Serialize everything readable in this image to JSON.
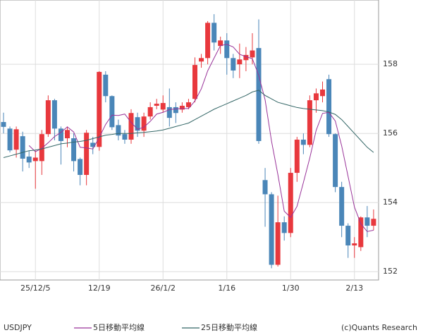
{
  "chart_data": {
    "type": "candlestick",
    "categories": [
      "2025-11-28",
      "2025-12-01",
      "2025-12-02",
      "2025-12-03",
      "2025-12-04",
      "2025-12-05",
      "2025-12-08",
      "2025-12-09",
      "2025-12-10",
      "2025-12-11",
      "2025-12-12",
      "2025-12-15",
      "2025-12-16",
      "2025-12-17",
      "2025-12-18",
      "2025-12-19",
      "2025-12-22",
      "2025-12-23",
      "2025-12-24",
      "2025-12-25",
      "2025-12-26",
      "2025-12-29",
      "2025-12-30",
      "2025-12-31",
      "2026-01-01",
      "2026-01-02",
      "2026-01-05",
      "2026-01-06",
      "2026-01-07",
      "2026-01-08",
      "2026-01-09",
      "2026-01-12",
      "2026-01-13",
      "2026-01-14",
      "2026-01-15",
      "2026-01-16",
      "2026-01-19",
      "2026-01-20",
      "2026-01-21",
      "2026-01-22",
      "2026-01-23",
      "2026-01-26",
      "2026-01-27",
      "2026-01-28",
      "2026-01-29",
      "2026-01-30",
      "2026-02-02",
      "2026-02-03",
      "2026-02-04",
      "2026-02-05",
      "2026-02-06",
      "2026-02-09",
      "2026-02-10",
      "2026-02-11",
      "2026-02-12",
      "2026-02-13",
      "2026-02-16",
      "2026-02-17",
      "2026-02-18"
    ],
    "open": [
      156.33,
      156.14,
      155.53,
      155.92,
      155.33,
      155.2,
      155.2,
      155.98,
      156.96,
      156.14,
      155.86,
      155.86,
      155.26,
      154.8,
      155.73,
      155.61,
      157.7,
      157.08,
      156.24,
      155.98,
      155.82,
      156.47,
      156.08,
      156.49,
      156.8,
      156.69,
      156.76,
      156.76,
      156.69,
      156.76,
      157.0,
      158.08,
      158.18,
      159.2,
      158.53,
      158.69,
      158.18,
      158.0,
      158.12,
      158.2,
      158.47,
      154.65,
      154.24,
      152.2,
      153.43,
      153.12,
      154.86,
      155.82,
      155.67,
      156.96,
      157.08,
      157.57,
      155.98,
      154.45,
      153.33,
      152.76,
      152.71,
      153.57,
      153.33
    ],
    "high": [
      156.6,
      156.2,
      156.2,
      156.05,
      155.5,
      155.5,
      156.1,
      157.1,
      157.0,
      156.2,
      156.2,
      156.0,
      155.3,
      156.1,
      155.9,
      157.8,
      157.8,
      157.1,
      156.4,
      156.1,
      156.7,
      156.6,
      156.6,
      156.9,
      157.0,
      157.1,
      157.3,
      156.9,
      156.9,
      157.0,
      158.2,
      158.3,
      159.25,
      159.45,
      158.8,
      158.9,
      158.3,
      158.6,
      158.5,
      158.9,
      159.3,
      155.0,
      154.3,
      154.2,
      153.6,
      155.0,
      155.9,
      156.0,
      157.1,
      157.3,
      157.5,
      157.7,
      156.0,
      154.6,
      153.4,
      153.0,
      153.6,
      153.9,
      153.8
    ],
    "low": [
      156.0,
      155.45,
      155.3,
      154.9,
      155.0,
      154.4,
      154.8,
      155.9,
      155.8,
      155.1,
      155.6,
      154.9,
      154.5,
      154.5,
      155.4,
      155.5,
      156.9,
      156.1,
      155.8,
      155.7,
      155.7,
      155.9,
      155.9,
      156.4,
      156.7,
      156.6,
      156.2,
      156.3,
      156.6,
      156.7,
      156.9,
      157.9,
      158.0,
      158.4,
      158.3,
      157.7,
      157.6,
      157.6,
      157.8,
      158.0,
      155.7,
      153.3,
      152.1,
      152.15,
      152.9,
      153.0,
      154.6,
      155.4,
      155.6,
      156.6,
      156.9,
      155.9,
      154.3,
      153.0,
      152.4,
      152.4,
      152.6,
      153.0,
      153.2
    ],
    "close": [
      156.19,
      155.51,
      156.12,
      155.27,
      155.16,
      155.3,
      155.98,
      156.96,
      156.14,
      155.78,
      156.1,
      155.2,
      154.8,
      156.02,
      155.61,
      157.78,
      157.08,
      156.18,
      155.94,
      155.82,
      156.59,
      156.08,
      156.49,
      156.76,
      156.86,
      156.88,
      156.45,
      156.59,
      156.8,
      156.9,
      157.98,
      158.18,
      159.2,
      158.63,
      158.69,
      158.18,
      157.82,
      158.14,
      158.27,
      158.4,
      155.78,
      154.24,
      152.2,
      153.43,
      153.12,
      154.86,
      155.82,
      155.67,
      156.96,
      157.16,
      157.27,
      155.98,
      154.45,
      153.33,
      152.76,
      152.82,
      153.57,
      153.33,
      153.53
    ],
    "up_color": "#e8383d",
    "down_color": "#4a86b8",
    "series": [
      {
        "name": "5日移動平均線",
        "color": "#993399",
        "values": [
          null,
          null,
          null,
          null,
          155.65,
          155.47,
          155.57,
          155.73,
          155.91,
          156.03,
          156.19,
          156.04,
          155.6,
          155.58,
          155.55,
          155.88,
          156.26,
          156.53,
          156.52,
          156.56,
          156.32,
          156.12,
          156.18,
          156.35,
          156.56,
          156.61,
          156.69,
          156.71,
          156.72,
          156.72,
          156.94,
          157.29,
          157.81,
          158.18,
          158.54,
          158.58,
          158.5,
          158.29,
          158.22,
          158.16,
          157.68,
          156.97,
          155.78,
          154.81,
          153.75,
          153.57,
          153.89,
          154.58,
          155.29,
          156.09,
          156.58,
          156.61,
          156.36,
          155.64,
          154.76,
          153.87,
          153.39,
          153.16,
          153.2
        ]
      },
      {
        "name": "25日移動平均線",
        "color": "#336666",
        "values": [
          155.3,
          155.35,
          155.4,
          155.45,
          155.5,
          155.52,
          155.55,
          155.6,
          155.65,
          155.7,
          155.72,
          155.75,
          155.77,
          155.8,
          155.85,
          155.9,
          155.95,
          155.97,
          156.0,
          156.0,
          156.0,
          156.02,
          156.03,
          156.05,
          156.07,
          156.1,
          156.15,
          156.2,
          156.25,
          156.3,
          156.4,
          156.5,
          156.6,
          156.7,
          156.78,
          156.86,
          156.94,
          157.02,
          157.1,
          157.2,
          157.25,
          157.1,
          157.0,
          156.9,
          156.85,
          156.8,
          156.75,
          156.72,
          156.7,
          156.68,
          156.66,
          156.62,
          156.55,
          156.4,
          156.2,
          156.0,
          155.8,
          155.6,
          155.45
        ]
      }
    ],
    "ylim": [
      151.76,
      159.86
    ],
    "yticks": [
      152,
      154,
      156,
      158
    ],
    "xticks": [
      {
        "value": "2025-12-05",
        "label": "25/12/5"
      },
      {
        "value": "2025-12-19",
        "label": "12/19"
      },
      {
        "value": "2026-01-02",
        "label": "26/1/2"
      },
      {
        "value": "2026-01-16",
        "label": "1/16"
      },
      {
        "value": "2026-01-30",
        "label": "1/30"
      },
      {
        "value": "2026-02-13",
        "label": "2/13"
      }
    ],
    "grid": true,
    "symbol": "USDJPY",
    "credit": "(c)Quants Research"
  }
}
